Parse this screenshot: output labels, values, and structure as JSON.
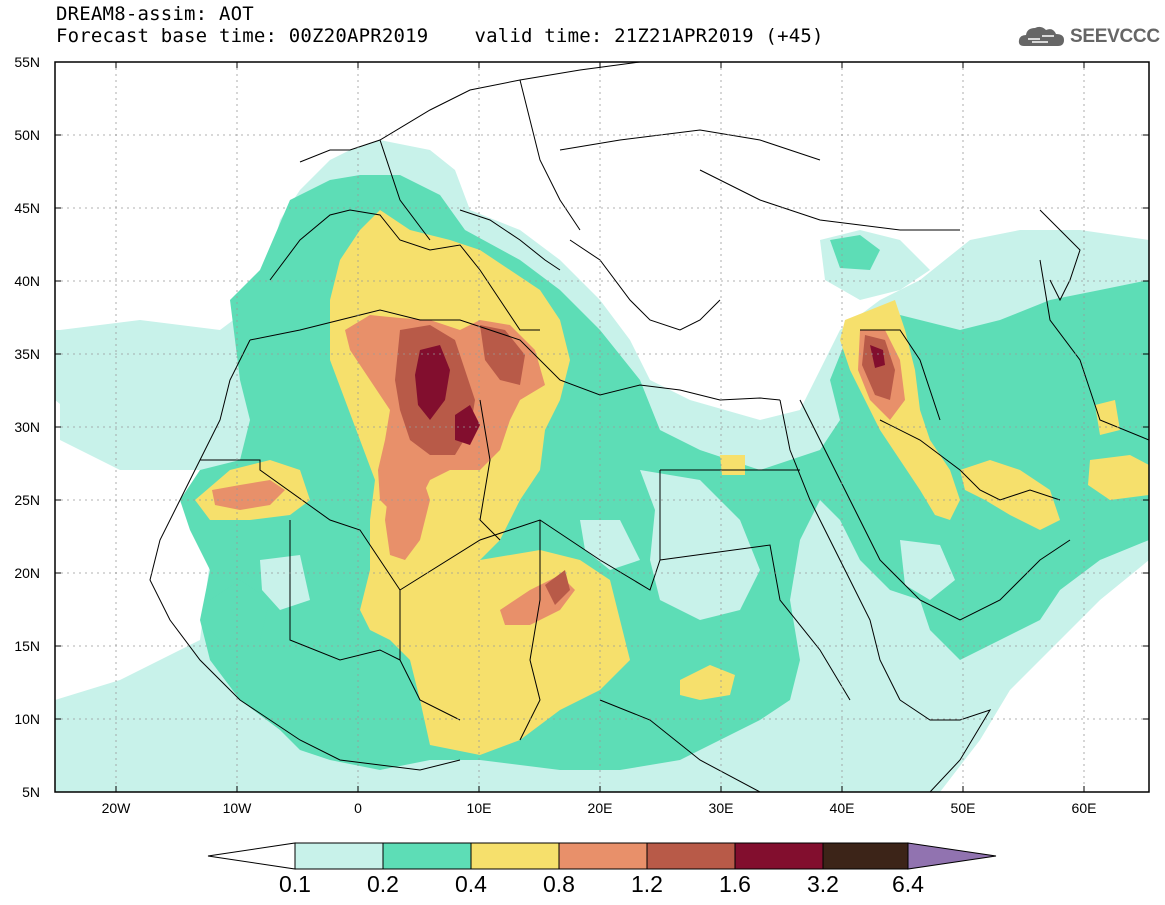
{
  "header": {
    "title": "DREAM8-assim: AOT",
    "base_time_label": "Forecast base time: 00Z20APR2019",
    "valid_time_label": "valid time: 21Z21APR2019 (+45)",
    "logo_text": "SEEVCCC"
  },
  "map": {
    "latitude_labels": [
      "55N",
      "50N",
      "45N",
      "40N",
      "35N",
      "30N",
      "25N",
      "20N",
      "15N",
      "10N",
      "5N"
    ],
    "longitude_labels": [
      "20W",
      "10W",
      "0",
      "10E",
      "20E",
      "30E",
      "40E",
      "50E",
      "60E"
    ],
    "extent": {
      "lon_min": -25,
      "lon_max": 65,
      "lat_min": 5,
      "lat_max": 55
    }
  },
  "colorbar": {
    "levels": [
      "0.1",
      "0.2",
      "0.4",
      "0.8",
      "1.2",
      "1.6",
      "3.2",
      "6.4"
    ],
    "colors": [
      "#ffffff",
      "#c8f2ea",
      "#5dddb6",
      "#f6e06c",
      "#e8906a",
      "#b85a48",
      "#820e2e",
      "#3c2418",
      "#9173b0"
    ]
  },
  "legend_colors": {
    "background": "#ffffff",
    "class_0_1": "#c8f2ea",
    "class_0_2": "#5dddb6",
    "class_0_4": "#f6e06c",
    "class_0_8": "#e8906a",
    "class_1_2": "#b85a48",
    "class_1_6": "#820e2e"
  }
}
